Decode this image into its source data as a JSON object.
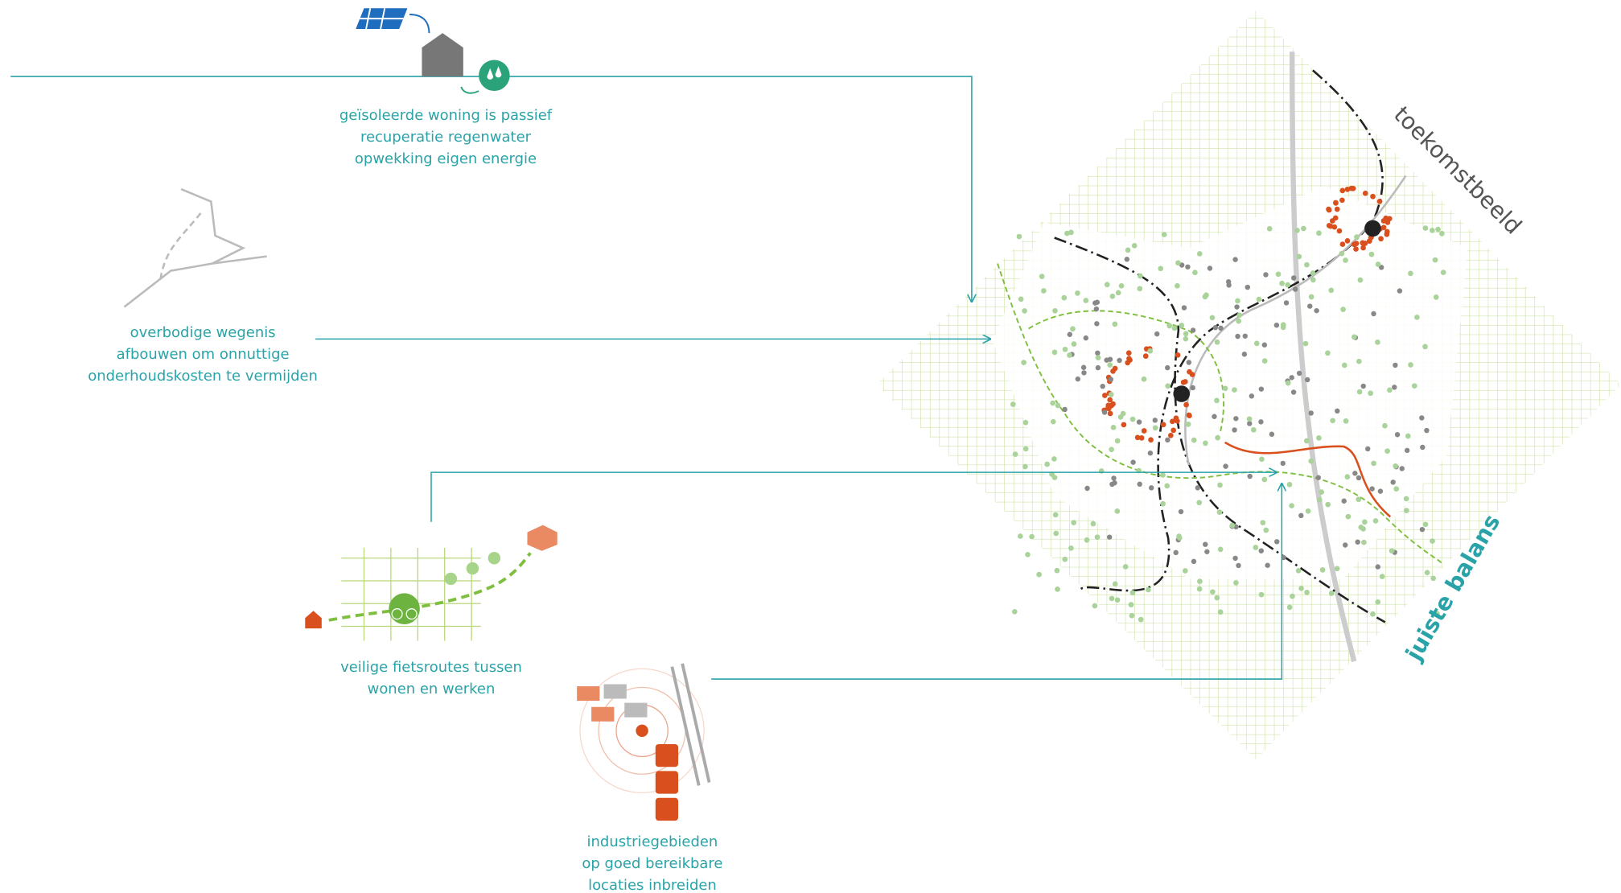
{
  "annotations": [
    {
      "lines": [
        "geïsoleerde woning is passief",
        "recuperatie regenwater",
        "opwekking eigen energie"
      ]
    },
    {
      "lines": [
        "overbodige wegenis",
        "afbouwen om onnuttige",
        "onderhoudskosten te vermijden"
      ]
    },
    {
      "lines": [
        "veilige fietsroutes tussen",
        "wonen en werken"
      ]
    },
    {
      "lines": [
        "industriegebieden",
        "op goed bereikbare",
        "locaties inbreiden"
      ]
    }
  ],
  "map_labels": [
    "toekomstbeeld",
    "juiste balans"
  ]
}
